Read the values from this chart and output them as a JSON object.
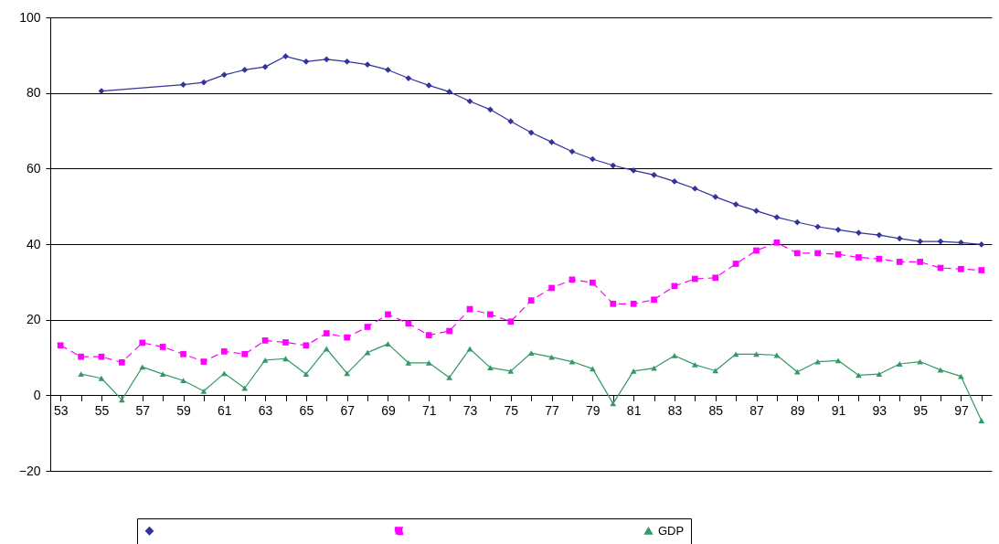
{
  "chart_data": {
    "type": "line",
    "categories": [
      "53",
      null,
      "55",
      null,
      "57",
      null,
      "59",
      null,
      "61",
      null,
      "63",
      null,
      "65",
      null,
      "67",
      null,
      "69",
      null,
      "71",
      null,
      "73",
      null,
      "75",
      null,
      "77",
      null,
      "79",
      null,
      "81",
      null,
      "83",
      null,
      "85",
      null,
      "87",
      null,
      "89",
      null,
      "91",
      null,
      "93",
      null,
      "95",
      null,
      "97",
      null
    ],
    "series": [
      {
        "color": "#333399",
        "marker": "diamond",
        "line_style": "solid",
        "values": [
          null,
          null,
          80.5,
          null,
          null,
          null,
          82.2,
          82.8,
          84.8,
          86.1,
          86.9,
          89.7,
          88.3,
          88.9,
          88.3,
          87.5,
          86.1,
          83.9,
          82.0,
          80.3,
          77.8,
          75.6,
          72.5,
          69.5,
          67.0,
          64.5,
          62.5,
          60.8,
          59.5,
          58.3,
          56.6,
          54.7,
          52.5,
          50.5,
          48.8,
          47.1,
          45.8,
          44.6,
          43.8,
          43.0,
          42.4,
          41.5,
          40.7,
          40.7,
          40.4,
          39.9
        ]
      },
      {
        "color": "#ff00ff",
        "marker": "square",
        "line_style": "dashed",
        "values": [
          13.2,
          10.2,
          10.2,
          8.7,
          13.9,
          12.8,
          10.9,
          8.9,
          11.6,
          10.9,
          14.5,
          14.0,
          13.2,
          16.4,
          15.3,
          18.1,
          21.4,
          19.0,
          15.9,
          17.0,
          22.8,
          21.4,
          19.5,
          25.1,
          28.4,
          30.6,
          29.8,
          24.2,
          24.2,
          25.3,
          28.9,
          30.8,
          31.1,
          34.8,
          38.3,
          40.4,
          37.6,
          37.6,
          37.3,
          36.5,
          36.1,
          35.3,
          35.3,
          33.7,
          33.4,
          33.1
        ]
      },
      {
        "name": "GDP",
        "color": "#339966",
        "marker": "triangle",
        "line_style": "solid",
        "values": [
          null,
          5.6,
          4.5,
          -1.2,
          7.5,
          5.6,
          3.9,
          1.1,
          5.8,
          1.9,
          9.3,
          9.7,
          5.6,
          12.3,
          5.8,
          11.3,
          13.6,
          8.6,
          8.6,
          4.7,
          12.3,
          7.3,
          6.4,
          11.2,
          10.1,
          8.9,
          7.0,
          -2.2,
          6.4,
          7.2,
          10.5,
          8.1,
          6.5,
          10.9,
          10.9,
          10.6,
          6.2,
          8.9,
          9.2,
          5.3,
          5.6,
          8.3,
          8.9,
          6.7,
          5.0,
          -6.7
        ]
      }
    ],
    "ylim": [
      -20,
      100
    ],
    "yticks": [
      -20,
      0,
      20,
      40,
      60,
      80,
      100
    ],
    "grid": "y",
    "legend": "bottom"
  }
}
